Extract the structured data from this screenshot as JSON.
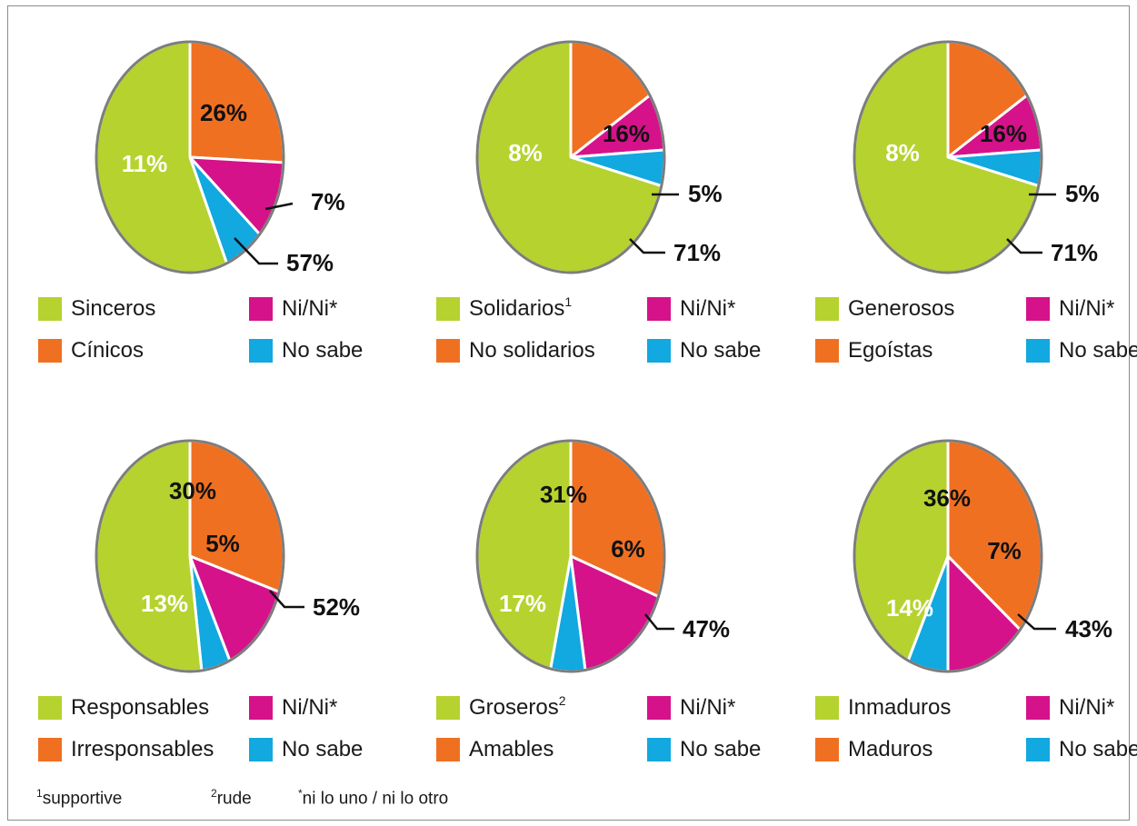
{
  "colors": {
    "green": "#b5d22f",
    "orange": "#f07022",
    "magenta": "#d5128a",
    "blue": "#12a8e0",
    "outline": "#7d7d7d"
  },
  "chart_data": [
    {
      "type": "pie",
      "slices": [
        {
          "label": "Cínicos",
          "value": 26,
          "color": "orange",
          "text": "26%"
        },
        {
          "label": "Ni/Ni*",
          "value": 11,
          "color": "magenta",
          "text": "11%"
        },
        {
          "label": "No sabe",
          "value": 7,
          "color": "blue",
          "text": "7%"
        },
        {
          "label": "Sinceros",
          "value": 57,
          "color": "green",
          "text": "57%"
        }
      ],
      "legend": [
        {
          "label": "Sinceros",
          "sup": "",
          "color": "green"
        },
        {
          "label": "Ni/Ni*",
          "sup": "",
          "color": "magenta"
        },
        {
          "label": "Cínicos",
          "sup": "",
          "color": "orange"
        },
        {
          "label": "No sabe",
          "sup": "",
          "color": "blue"
        }
      ]
    },
    {
      "type": "pie",
      "slices": [
        {
          "label": "No solidarios",
          "value": 16,
          "color": "orange",
          "text": "16%"
        },
        {
          "label": "Ni/Ni*",
          "value": 8,
          "color": "magenta",
          "text": "8%"
        },
        {
          "label": "No sabe",
          "value": 5,
          "color": "blue",
          "text": "5%"
        },
        {
          "label": "Solidarios",
          "value": 71,
          "color": "green",
          "text": "71%"
        }
      ],
      "legend": [
        {
          "label": "Solidarios",
          "sup": "1",
          "color": "green"
        },
        {
          "label": "Ni/Ni*",
          "sup": "",
          "color": "magenta"
        },
        {
          "label": "No solidarios",
          "sup": "",
          "color": "orange"
        },
        {
          "label": "No sabe",
          "sup": "",
          "color": "blue"
        }
      ]
    },
    {
      "type": "pie",
      "slices": [
        {
          "label": "Egoístas",
          "value": 16,
          "color": "orange",
          "text": "16%"
        },
        {
          "label": "Ni/Ni*",
          "value": 8,
          "color": "magenta",
          "text": "8%"
        },
        {
          "label": "No sabe",
          "value": 5,
          "color": "blue",
          "text": "5%"
        },
        {
          "label": "Generosos",
          "value": 71,
          "color": "green",
          "text": "71%"
        }
      ],
      "legend": [
        {
          "label": "Generosos",
          "sup": "",
          "color": "green"
        },
        {
          "label": "Ni/Ni*",
          "sup": "",
          "color": "magenta"
        },
        {
          "label": "Egoístas",
          "sup": "",
          "color": "orange"
        },
        {
          "label": "No sabe",
          "sup": "",
          "color": "blue"
        }
      ]
    },
    {
      "type": "pie",
      "slices": [
        {
          "label": "Irresponsables",
          "value": 30,
          "color": "orange",
          "text": "30%"
        },
        {
          "label": "Ni/Ni*",
          "value": 13,
          "color": "magenta",
          "text": "13%"
        },
        {
          "label": "No sabe",
          "value": 5,
          "color": "blue",
          "text": "5%"
        },
        {
          "label": "Responsables",
          "value": 52,
          "color": "green",
          "text": "52%"
        }
      ],
      "legend": [
        {
          "label": "Responsables",
          "sup": "",
          "color": "green"
        },
        {
          "label": "Ni/Ni*",
          "sup": "",
          "color": "magenta"
        },
        {
          "label": "Irresponsables",
          "sup": "",
          "color": "orange"
        },
        {
          "label": "No sabe",
          "sup": "",
          "color": "blue"
        }
      ]
    },
    {
      "type": "pie",
      "slices": [
        {
          "label": "Amables",
          "value": 31,
          "color": "orange",
          "text": "31%"
        },
        {
          "label": "Ni/Ni*",
          "value": 17,
          "color": "magenta",
          "text": "17%"
        },
        {
          "label": "No sabe",
          "value": 6,
          "color": "blue",
          "text": "6%"
        },
        {
          "label": "Groseros",
          "value": 47,
          "color": "green",
          "text": "47%"
        }
      ],
      "legend": [
        {
          "label": "Groseros",
          "sup": "2",
          "color": "green"
        },
        {
          "label": "Ni/Ni*",
          "sup": "",
          "color": "magenta"
        },
        {
          "label": "Amables",
          "sup": "",
          "color": "orange"
        },
        {
          "label": "No sabe",
          "sup": "",
          "color": "blue"
        }
      ]
    },
    {
      "type": "pie",
      "slices": [
        {
          "label": "Maduros",
          "value": 36,
          "color": "orange",
          "text": "36%"
        },
        {
          "label": "Ni/Ni*",
          "value": 14,
          "color": "magenta",
          "text": "14%"
        },
        {
          "label": "No sabe",
          "value": 7,
          "color": "blue",
          "text": "7%"
        },
        {
          "label": "Inmaduros",
          "value": 43,
          "color": "green",
          "text": "43%"
        }
      ],
      "legend": [
        {
          "label": "Inmaduros",
          "sup": "",
          "color": "green"
        },
        {
          "label": "Ni/Ni*",
          "sup": "",
          "color": "magenta"
        },
        {
          "label": "Maduros",
          "sup": "",
          "color": "orange"
        },
        {
          "label": "No sabe",
          "sup": "",
          "color": "blue"
        }
      ]
    }
  ],
  "footnotes": {
    "fn1_mark": "1",
    "fn1_text": "supportive",
    "fn2_mark": "2",
    "fn2_text": "rude",
    "fn3_mark": "*",
    "fn3_text": "ni lo uno / ni lo otro"
  }
}
